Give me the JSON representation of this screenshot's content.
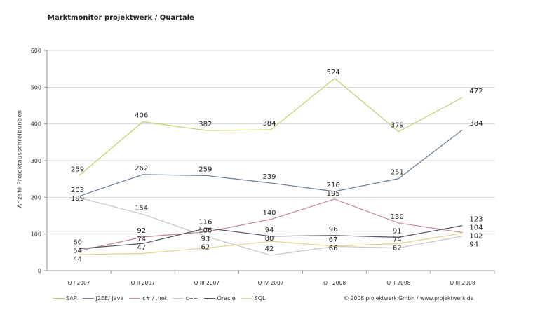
{
  "chart_data": {
    "type": "line",
    "title": "Marktmonitor projektwerk / Quartale",
    "xlabel": "",
    "ylabel": "Anzahl Projektausschreibungen",
    "ylim": [
      0,
      600
    ],
    "yticks": [
      0,
      100,
      200,
      300,
      400,
      500,
      600
    ],
    "grid": true,
    "legend": "bottom-left",
    "categories": [
      "Q I 2007",
      "Q II 2007",
      "Q III 2007",
      "Q IV 2007",
      "Q I 2008",
      "Q II 2008",
      "Q III 2008"
    ],
    "series": [
      {
        "name": "SAP",
        "color": "#c5cc6a",
        "values": [
          259,
          406,
          382,
          384,
          524,
          379,
          472
        ]
      },
      {
        "name": "J2EE/ Java",
        "color": "#6b7b92",
        "values": [
          203,
          262,
          259,
          239,
          216,
          251,
          384
        ]
      },
      {
        "name": "c# / .net",
        "color": "#c08a92",
        "values": [
          54,
          92,
          106,
          140,
          195,
          130,
          104
        ]
      },
      {
        "name": "c++",
        "color": "#c9c2c9",
        "values": [
          199,
          154,
          93,
          42,
          66,
          62,
          94
        ]
      },
      {
        "name": "Oracle",
        "color": "#4f5262",
        "values": [
          60,
          74,
          116,
          94,
          96,
          91,
          123
        ]
      },
      {
        "name": "SQL",
        "color": "#ddd68a",
        "values": [
          44,
          47,
          62,
          80,
          67,
          74,
          102
        ]
      }
    ]
  },
  "footer": {
    "copyright": "© 2008 projektwerk GmbH  /  www.projektwerk.de"
  }
}
